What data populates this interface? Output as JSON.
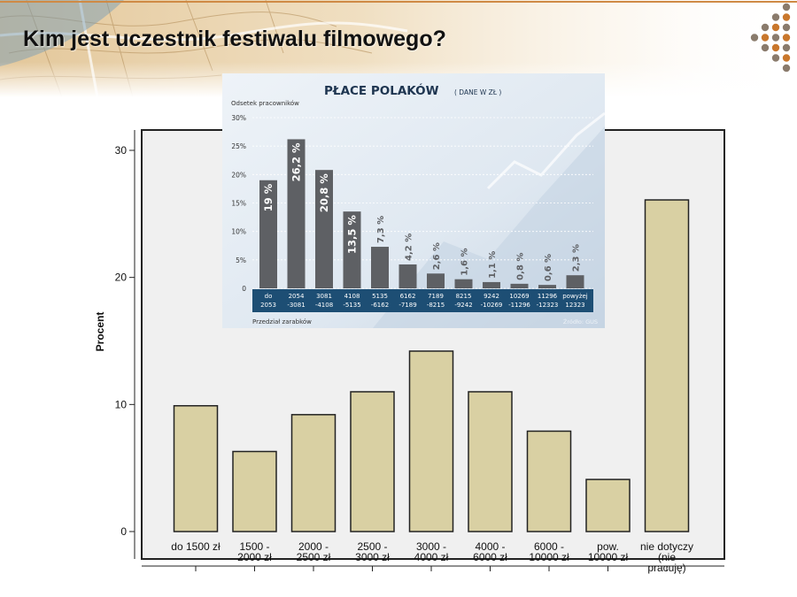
{
  "slide": {
    "title": "Kim jest uczestnik festiwalu filmowego?",
    "bar_fill": "#d9d0a3",
    "plot_background": "#f0f0f0",
    "accent_dots": [
      "#c9772c",
      "#8a7b6c"
    ]
  },
  "chart_data": [
    {
      "type": "bar",
      "title": "",
      "xlabel": "",
      "ylabel": "Procent",
      "ylim": [
        0,
        30
      ],
      "yticks": [
        0,
        10,
        20,
        30
      ],
      "categories": [
        "do 1500 zł",
        "1500 - 2000 zł",
        "2000 - 2500 zł",
        "2500 - 3000 zł",
        "3000 - 4000 zł",
        "4000 - 6000 zł",
        "6000 - 10000 zł",
        "pow. 10000 zł",
        "nie dotyczy (nie pracuję)"
      ],
      "category_lines": [
        [
          "do 1500 zł"
        ],
        [
          "1500 -",
          "2000 zł"
        ],
        [
          "2000 -",
          "2500 zł"
        ],
        [
          "2500 -",
          "3000 zł"
        ],
        [
          "3000 -",
          "4000 zł"
        ],
        [
          "4000 -",
          "6000 zł"
        ],
        [
          "6000 -",
          "10000 zł"
        ],
        [
          "pow.",
          "10000 zł"
        ],
        [
          "nie dotyczy",
          "(nie",
          "pracuję)"
        ]
      ],
      "values": [
        9.9,
        6.3,
        9.2,
        11.0,
        14.2,
        11.0,
        7.9,
        4.1,
        26.1
      ],
      "grid": false,
      "legend": "none"
    },
    {
      "type": "bar",
      "title": "PŁACE POLAKÓW",
      "subtitle": "( DANE W ZŁ )",
      "ylabel": "Odsetek pracowników",
      "xlabel": "Przedział zarabków",
      "source": "Źródło: GUS",
      "ylim": [
        0,
        30
      ],
      "yticks": [
        "0",
        "5%",
        "10%",
        "15%",
        "20%",
        "25%",
        "30%"
      ],
      "categories": [
        "do 2053",
        "2054 -3081",
        "3081 -4108",
        "4108 -5135",
        "5135 -6162",
        "6162 -7189",
        "7189 -8215",
        "8215 -9242",
        "9242 -10269",
        "10269 -11296",
        "11296 -12323",
        "powyżej 12323"
      ],
      "category_lines": [
        [
          "do",
          "2053"
        ],
        [
          "2054",
          "-3081"
        ],
        [
          "3081",
          "-4108"
        ],
        [
          "4108",
          "-5135"
        ],
        [
          "5135",
          "-6162"
        ],
        [
          "6162",
          "-7189"
        ],
        [
          "7189",
          "-8215"
        ],
        [
          "8215",
          "-9242"
        ],
        [
          "9242",
          "-10269"
        ],
        [
          "10269",
          "-11296"
        ],
        [
          "11296",
          "-12323"
        ],
        [
          "powyżej",
          "12323"
        ]
      ],
      "values": [
        19,
        26.2,
        20.8,
        13.5,
        7.3,
        4.2,
        2.6,
        1.6,
        1.1,
        0.8,
        0.6,
        2.3
      ],
      "value_labels": [
        "19 %",
        "26,2 %",
        "20,8 %",
        "13,5 %",
        "7,3 %",
        "4,2 %",
        "2,6 %",
        "1,6 %",
        "1,1 %",
        "0,8 %",
        "0,6 %",
        "2,3 %"
      ],
      "colors": {
        "bar": "#5e6064",
        "band": "#1d4e74"
      },
      "grid": true,
      "legend": "none"
    }
  ]
}
